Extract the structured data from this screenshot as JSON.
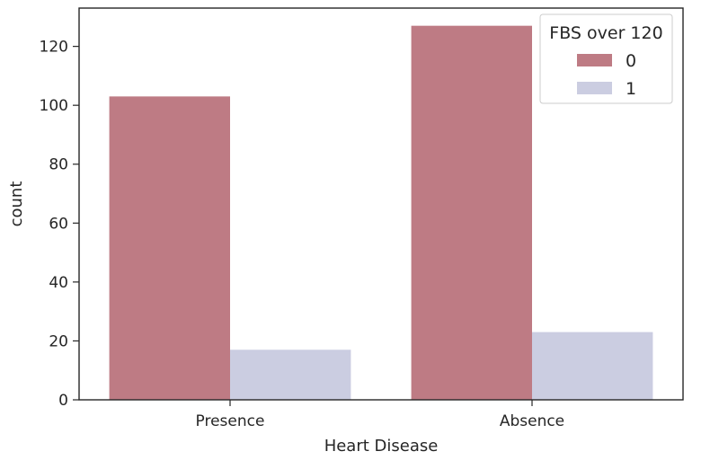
{
  "chart_data": {
    "type": "bar",
    "categories": [
      "Presence",
      "Absence"
    ],
    "series": [
      {
        "name": "0",
        "values": [
          103,
          127
        ],
        "color": "#be7b84"
      },
      {
        "name": "1",
        "values": [
          17,
          23
        ],
        "color": "#cbcde1"
      }
    ],
    "xlabel": "Heart Disease",
    "ylabel": "count",
    "ylim": [
      0,
      133
    ],
    "yticks": [
      0,
      20,
      40,
      60,
      80,
      100,
      120
    ],
    "legend": {
      "title": "FBS over 120",
      "position": "top-right"
    },
    "grid": false
  }
}
